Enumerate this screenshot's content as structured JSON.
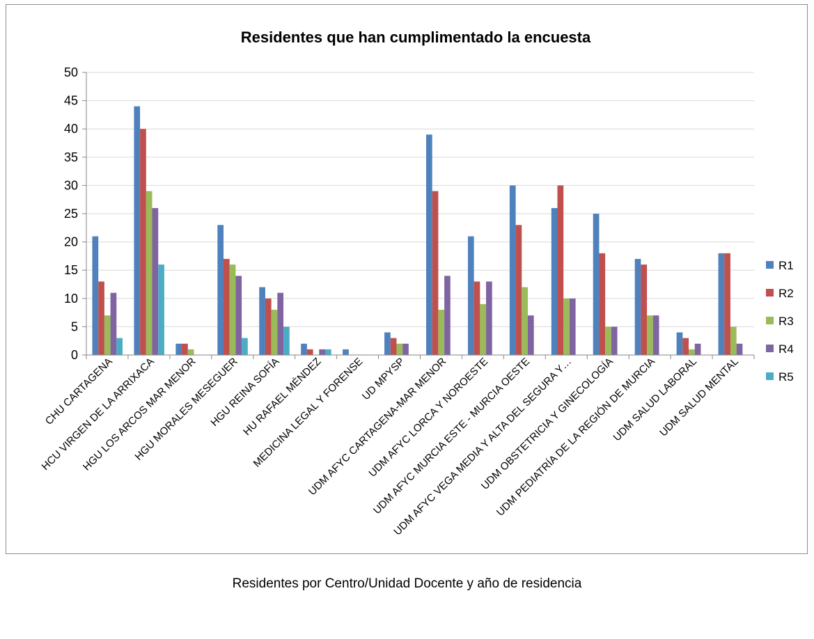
{
  "caption": "Residentes por Centro/Unidad Docente y año de residencia",
  "chart_data": {
    "type": "bar",
    "title": "Residentes que han cumplimentado la encuesta",
    "xlabel": "",
    "ylabel": "",
    "ylim": [
      0,
      50
    ],
    "yticks": [
      0,
      5,
      10,
      15,
      20,
      25,
      30,
      35,
      40,
      45,
      50
    ],
    "grid": true,
    "legend_position": "right",
    "categories": [
      "CHU CARTAGENA",
      "HCU VIRGEN DE LA ARRIXACA",
      "HGU LOS ARCOS MAR MENOR",
      "HGU MORALES MESEGUER",
      "HGU REINA SOFÍA",
      "HU RAFAEL MÉNDEZ",
      "MEDICINA LEGAL Y FORENSE",
      "UD MPYSP",
      "UDM AFYC CARTAGENA-MAR MENOR",
      "UDM AFYC LORCA Y NOROESTE",
      "UDM AFYC MURCIA ESTE - MURCIA OESTE",
      "UDM AFYC VEGA MEDIA Y ALTA DEL SEGURA Y…",
      "UDM OBSTETRICIA Y GINECOLOGÍA",
      "UDM PEDIATRÍA  DE LA REGIÓN DE MURCIA",
      "UDM SALUD LABORAL",
      "UDM SALUD MENTAL"
    ],
    "series": [
      {
        "name": "R1",
        "color": "#4f81bd",
        "values": [
          21,
          44,
          2,
          23,
          12,
          2,
          1,
          4,
          39,
          21,
          30,
          26,
          25,
          17,
          4,
          18
        ]
      },
      {
        "name": "R2",
        "color": "#c0504d",
        "values": [
          13,
          40,
          2,
          17,
          10,
          1,
          0,
          3,
          29,
          13,
          23,
          30,
          18,
          16,
          3,
          18
        ]
      },
      {
        "name": "R3",
        "color": "#9bbb59",
        "values": [
          7,
          29,
          1,
          16,
          8,
          0,
          0,
          2,
          8,
          9,
          12,
          10,
          5,
          7,
          1,
          5
        ]
      },
      {
        "name": "R4",
        "color": "#8064a2",
        "values": [
          11,
          26,
          0,
          14,
          11,
          1,
          0,
          2,
          14,
          13,
          7,
          10,
          5,
          7,
          2,
          2
        ]
      },
      {
        "name": "R5",
        "color": "#4bacc6",
        "values": [
          3,
          16,
          0,
          3,
          5,
          1,
          0,
          0,
          0,
          0,
          0,
          0,
          0,
          0,
          0,
          0
        ]
      }
    ]
  }
}
